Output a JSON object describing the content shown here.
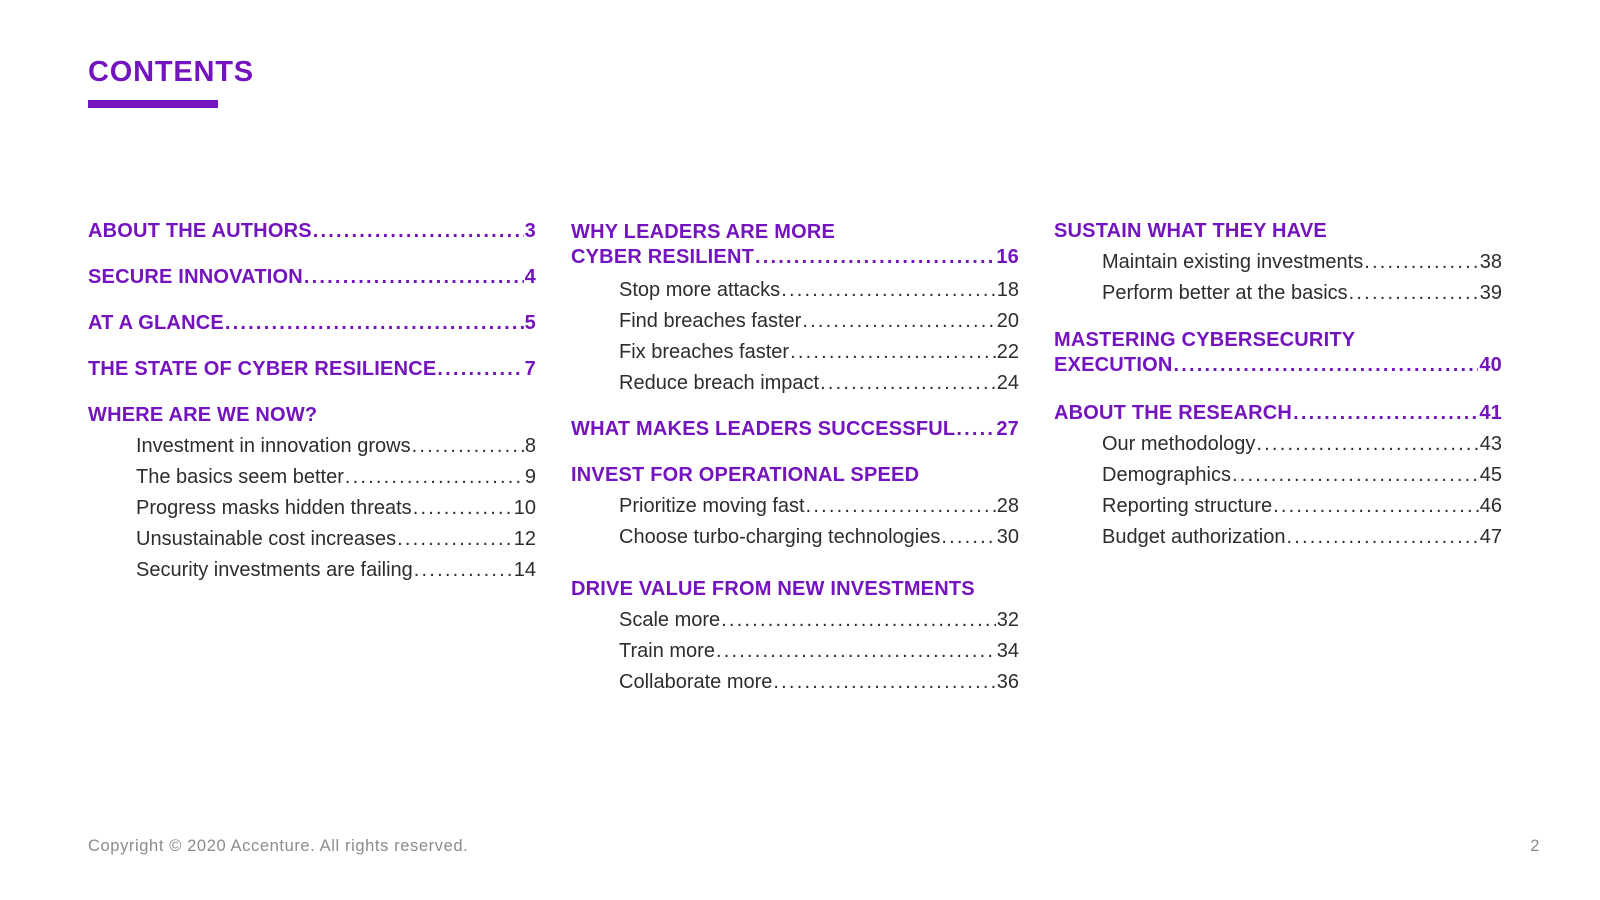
{
  "page": {
    "title": "CONTENTS",
    "accent_color": "#7414BE",
    "footer": {
      "copyright": "Copyright © 2020 Accenture. All rights reserved.",
      "page_number": "2"
    }
  },
  "toc": {
    "columns": [
      {
        "entries": [
          {
            "type": "main",
            "label": "ABOUT THE AUTHORS",
            "page": "3"
          },
          {
            "type": "main",
            "label": "SECURE INNOVATION",
            "page": "4"
          },
          {
            "type": "main",
            "label": "AT A GLANCE",
            "page": "5"
          },
          {
            "type": "main",
            "label": "THE STATE OF CYBER RESILIENCE",
            "page": "7"
          },
          {
            "type": "section",
            "label": "WHERE ARE WE NOW?"
          },
          {
            "type": "item",
            "label": "Investment in innovation grows",
            "page": "8"
          },
          {
            "type": "item",
            "label": "The basics seem better",
            "page": "9"
          },
          {
            "type": "item",
            "label": "Progress masks hidden threats",
            "page": "10"
          },
          {
            "type": "item",
            "label": "Unsustainable cost increases",
            "page": "12"
          },
          {
            "type": "item",
            "label": "Security investments are failing",
            "page": "14"
          }
        ]
      },
      {
        "entries": [
          {
            "type": "main",
            "label": "WHY LEADERS ARE MORE",
            "label2": "CYBER RESILIENT",
            "page": "16"
          },
          {
            "type": "item",
            "label": "Stop more attacks",
            "page": "18"
          },
          {
            "type": "item",
            "label": "Find breaches faster",
            "page": "20"
          },
          {
            "type": "item",
            "label": "Fix breaches faster",
            "page": "22"
          },
          {
            "type": "item",
            "label": "Reduce breach impact",
            "page": "24"
          },
          {
            "type": "main",
            "label": "WHAT MAKES LEADERS SUCCESSFUL",
            "page": "27"
          },
          {
            "type": "section",
            "label": "INVEST FOR OPERATIONAL SPEED"
          },
          {
            "type": "item",
            "label": "Prioritize moving fast",
            "page": "28"
          },
          {
            "type": "item",
            "label": "Choose turbo-charging technologies",
            "page": "30"
          },
          {
            "type": "section",
            "label": "DRIVE VALUE FROM NEW INVESTMENTS",
            "extra_space": true
          },
          {
            "type": "item",
            "label": "Scale more",
            "page": "32"
          },
          {
            "type": "item",
            "label": "Train more",
            "page": "34"
          },
          {
            "type": "item",
            "label": "Collaborate more",
            "page": "36"
          }
        ]
      },
      {
        "entries": [
          {
            "type": "section",
            "label": "SUSTAIN WHAT THEY HAVE"
          },
          {
            "type": "item",
            "label": "Maintain existing investments",
            "page": "38"
          },
          {
            "type": "item",
            "label": "Perform better at the basics",
            "page": "39"
          },
          {
            "type": "main",
            "label": "MASTERING CYBERSECURITY",
            "label2": "EXECUTION",
            "page": "40"
          },
          {
            "type": "main",
            "label": "ABOUT THE RESEARCH",
            "page": "41"
          },
          {
            "type": "item",
            "label": "Our methodology",
            "page": "43"
          },
          {
            "type": "item",
            "label": "Demographics",
            "page": "45"
          },
          {
            "type": "item",
            "label": "Reporting structure",
            "page": "46"
          },
          {
            "type": "item",
            "label": "Budget authorization",
            "page": "47"
          }
        ]
      }
    ]
  }
}
